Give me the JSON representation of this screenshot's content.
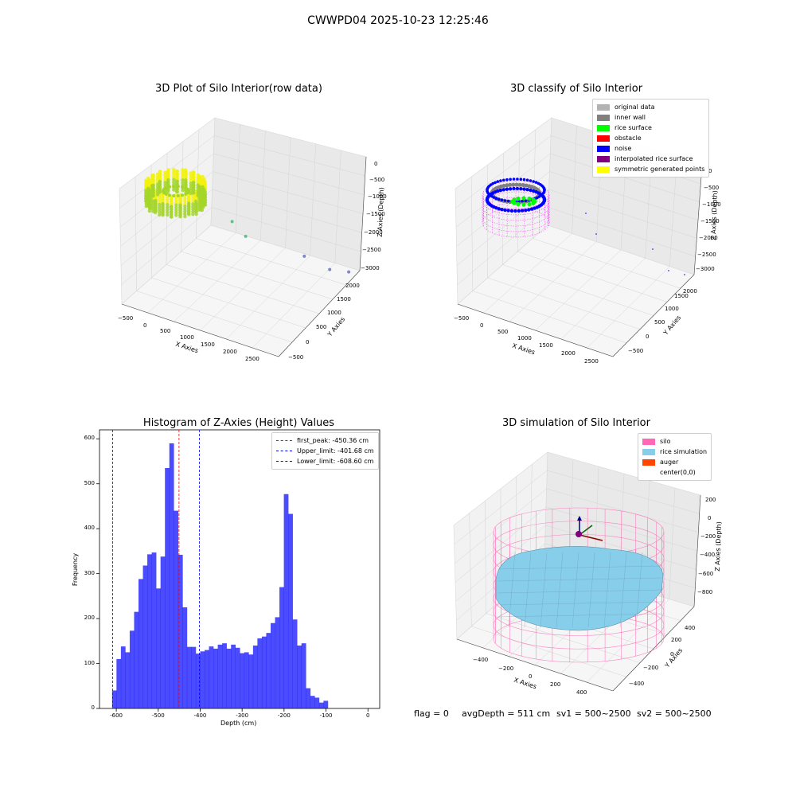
{
  "figure": {
    "suptitle": "CWWPD04 2025-10-23 12:25:46",
    "info": {
      "flag": "flag = 0",
      "avg_depth": "avgDepth = 511 cm",
      "sv1": "sv1 = 500~2500",
      "sv2": "sv2 = 500~2500"
    }
  },
  "chart_data": [
    {
      "type": "scatter",
      "title": "3D Plot of Silo Interior(row data)",
      "xlabel": "X Axies",
      "ylabel": "Y Axies",
      "zlabel": "Z Axies (Depth)",
      "x_ticks": [
        "−500",
        "0",
        "500",
        "1000",
        "1500",
        "2000",
        "2500"
      ],
      "y_ticks": [
        "−500",
        "0",
        "500",
        "1000",
        "1500",
        "2000"
      ],
      "z_ticks": [
        "0",
        "−500",
        "−1000",
        "−1500",
        "−2000",
        "−2500",
        "−3000"
      ],
      "outlier_points": [
        {
          "x": 650,
          "y": 1000,
          "z": -1400
        },
        {
          "x": 800,
          "y": 1200,
          "z": -1900
        },
        {
          "x": 1700,
          "y": 1700,
          "z": -2450
        },
        {
          "x": 2100,
          "y": 1900,
          "z": -2800
        },
        {
          "x": 2400,
          "y": 2050,
          "z": -2850
        }
      ],
      "colors": {
        "surface_top": "#f2f20a",
        "surface_mid": "#a4d62a",
        "outlier": "#5cc38b",
        "outlier_far": "#7f86c9"
      }
    },
    {
      "type": "scatter",
      "title": "3D classify of Silo Interior",
      "xlabel": "X Axies",
      "ylabel": "Y Axies",
      "zlabel": "Z Axies (Depth)",
      "x_ticks": [
        "−500",
        "0",
        "500",
        "1000",
        "1500",
        "2000",
        "2500"
      ],
      "y_ticks": [
        "−500",
        "0",
        "500",
        "1000",
        "1500",
        "2000"
      ],
      "z_ticks": [
        "0",
        "−500",
        "−1000",
        "−1500",
        "−2000",
        "−2500",
        "−3000"
      ],
      "legend": [
        {
          "label": "original data",
          "color": "#b3b3b3"
        },
        {
          "label": "inner wall",
          "color": "#808080"
        },
        {
          "label": "rice surface",
          "color": "#00ff00"
        },
        {
          "label": "obstacle",
          "color": "#ff0000"
        },
        {
          "label": "noise",
          "color": "#0000ff"
        },
        {
          "label": "interpolated rice surface",
          "color": "#800080"
        },
        {
          "label": "symmetric generated points",
          "color": "#ffff00"
        }
      ]
    },
    {
      "type": "bar",
      "title": "Histogram of Z-Axies (Height) Values",
      "xlabel": "Depth (cm)",
      "ylabel": "Frequency",
      "xlim": [
        -640,
        28
      ],
      "ylim": [
        0,
        620
      ],
      "x_ticks": [
        -600,
        -500,
        -400,
        -300,
        -200,
        -100,
        0
      ],
      "y_ticks": [
        0,
        100,
        200,
        300,
        400,
        500,
        600
      ],
      "bin_start": -610,
      "bin_width": 10.5,
      "values": [
        40,
        110,
        138,
        125,
        173,
        215,
        288,
        318,
        343,
        347,
        267,
        338,
        535,
        590,
        440,
        342,
        225,
        137,
        137,
        122,
        127,
        130,
        138,
        133,
        142,
        145,
        133,
        142,
        135,
        123,
        125,
        120,
        140,
        156,
        160,
        168,
        190,
        203,
        270,
        477,
        433,
        198,
        140,
        145,
        45,
        28,
        24,
        13,
        17
      ],
      "bar_color": "#0000ff",
      "vlines": [
        {
          "label": "first_peak: -450.36 cm",
          "x": -450.36,
          "color": "#ff0000"
        },
        {
          "label": "Upper_limit: -401.68 cm",
          "x": -401.68,
          "color": "#0000ff"
        },
        {
          "label": "Lower_limit: -608.60 cm",
          "x": -608.6,
          "color": "#0000ff"
        }
      ]
    },
    {
      "type": "surface",
      "title": "3D simulation of Silo Interior",
      "xlabel": "X Axies",
      "ylabel": "Y Axies",
      "zlabel": "Z Axies (Depth)",
      "x_ticks": [
        "−400",
        "−200",
        "0",
        "200",
        "400"
      ],
      "y_ticks": [
        "−400",
        "−200",
        "0",
        "200",
        "400"
      ],
      "z_ticks": [
        "200",
        "0",
        "−200",
        "−400",
        "−600",
        "−800"
      ],
      "legend": [
        {
          "label": "silo",
          "color": "#ff69b4"
        },
        {
          "label": "rice simulation",
          "color": "#87ceeb"
        },
        {
          "label": "auger",
          "color": "#ff4500"
        },
        {
          "label": "center(0,0)",
          "color": "#ffffff"
        }
      ]
    }
  ]
}
